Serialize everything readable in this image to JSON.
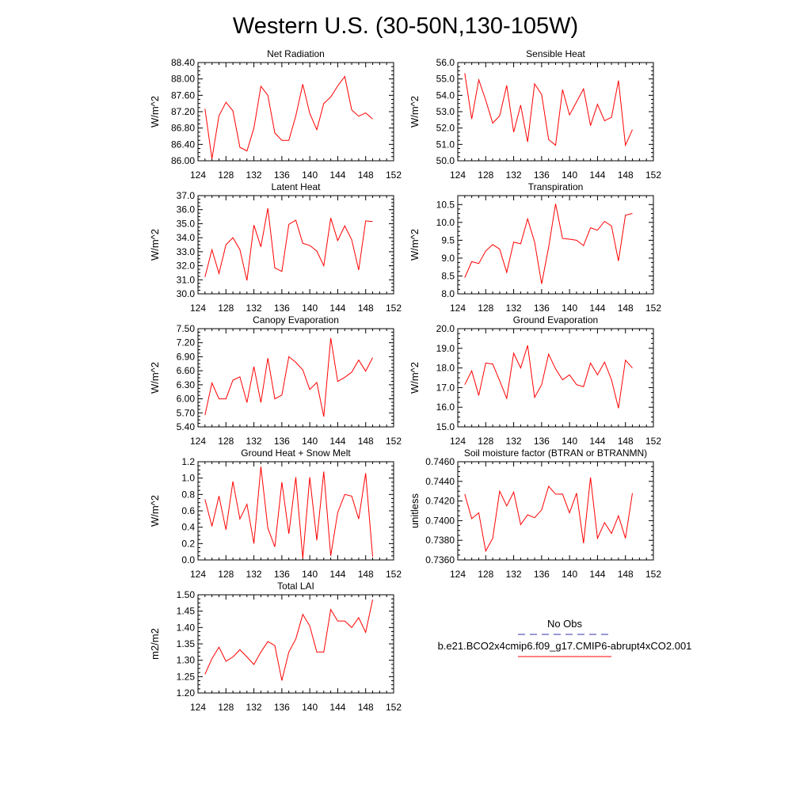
{
  "figure_title": "Western U.S. (30-50N,130-105W)",
  "legend": {
    "items": [
      {
        "label": "No Obs",
        "color": "#3333aa",
        "dash": true
      },
      {
        "label": "b.e21.BCO2x4cmip6.f09_g17.CMIP6-abrupt4xCO2.001",
        "color": "#ff0000",
        "dash": false
      }
    ]
  },
  "chart_data": [
    {
      "type": "line",
      "title": "Net Radiation",
      "ylabel": "W/m^2",
      "xlim": [
        124,
        152
      ],
      "ylim": [
        86.0,
        88.4
      ],
      "x_ticks": [
        "124",
        "128",
        "132",
        "136",
        "140",
        "144",
        "148",
        "152"
      ],
      "y_ticks": [
        "86.00",
        "86.40",
        "86.80",
        "87.20",
        "87.60",
        "88.00",
        "88.40"
      ],
      "series": [
        {
          "color": "#ff0000",
          "x": [
            125,
            126,
            127,
            128,
            129,
            130,
            131,
            132,
            133,
            134,
            135,
            136,
            137,
            138,
            139,
            140,
            141,
            142,
            143,
            144,
            145,
            146,
            147,
            148,
            149
          ],
          "values": [
            87.27,
            86.05,
            87.1,
            87.43,
            87.22,
            86.33,
            86.24,
            86.8,
            87.82,
            87.6,
            86.68,
            86.5,
            86.5,
            87.1,
            87.87,
            87.16,
            86.76,
            87.4,
            87.56,
            87.83,
            88.06,
            87.24,
            87.09,
            87.17,
            87.02
          ]
        }
      ]
    },
    {
      "type": "line",
      "title": "Sensible Heat",
      "ylabel": "W/m^2",
      "xlim": [
        124,
        152
      ],
      "ylim": [
        50.0,
        56.0
      ],
      "x_ticks": [
        "124",
        "128",
        "132",
        "136",
        "140",
        "144",
        "148",
        "152"
      ],
      "y_ticks": [
        "50.0",
        "51.0",
        "52.0",
        "53.0",
        "54.0",
        "55.0",
        "56.0"
      ],
      "series": [
        {
          "color": "#ff0000",
          "x": [
            125,
            126,
            127,
            128,
            129,
            130,
            131,
            132,
            133,
            134,
            135,
            136,
            137,
            138,
            139,
            140,
            141,
            142,
            143,
            144,
            145,
            146,
            147,
            148,
            149
          ],
          "values": [
            55.35,
            52.55,
            54.95,
            53.7,
            52.3,
            52.75,
            54.6,
            51.75,
            53.4,
            51.15,
            54.7,
            54.05,
            51.3,
            50.95,
            54.35,
            52.8,
            53.6,
            54.4,
            52.15,
            53.45,
            52.45,
            52.65,
            54.9,
            50.95,
            51.9
          ]
        }
      ]
    },
    {
      "type": "line",
      "title": "Latent Heat",
      "ylabel": "W/m^2",
      "xlim": [
        124,
        152
      ],
      "ylim": [
        30.0,
        37.0
      ],
      "x_ticks": [
        "124",
        "128",
        "132",
        "136",
        "140",
        "144",
        "148",
        "152"
      ],
      "y_ticks": [
        "30.0",
        "31.0",
        "32.0",
        "33.0",
        "34.0",
        "35.0",
        "36.0",
        "37.0"
      ],
      "series": [
        {
          "color": "#ff0000",
          "x": [
            125,
            126,
            127,
            128,
            129,
            130,
            131,
            132,
            133,
            134,
            135,
            136,
            137,
            138,
            139,
            140,
            141,
            142,
            143,
            144,
            145,
            146,
            147,
            148,
            149
          ],
          "values": [
            31.2,
            33.15,
            31.45,
            33.5,
            34.0,
            33.15,
            30.95,
            34.9,
            33.35,
            36.1,
            31.85,
            31.6,
            34.95,
            35.25,
            33.6,
            33.45,
            33.05,
            32.0,
            35.4,
            33.8,
            34.85,
            33.85,
            31.7,
            35.2,
            35.15
          ]
        }
      ]
    },
    {
      "type": "line",
      "title": "Transpiration",
      "ylabel": "W/m^2",
      "xlim": [
        124,
        152
      ],
      "ylim": [
        8.0,
        10.75
      ],
      "x_ticks": [
        "124",
        "128",
        "132",
        "136",
        "140",
        "144",
        "148",
        "152"
      ],
      "y_ticks": [
        "8.0",
        "8.5",
        "9.0",
        "9.5",
        "10.0",
        "10.5"
      ],
      "series": [
        {
          "color": "#ff0000",
          "x": [
            125,
            126,
            127,
            128,
            129,
            130,
            131,
            132,
            133,
            134,
            135,
            136,
            137,
            138,
            139,
            140,
            141,
            142,
            143,
            144,
            145,
            146,
            147,
            148,
            149
          ],
          "values": [
            8.45,
            8.9,
            8.85,
            9.2,
            9.38,
            9.25,
            8.6,
            9.45,
            9.4,
            10.1,
            9.45,
            8.28,
            9.3,
            10.52,
            9.55,
            9.53,
            9.5,
            9.35,
            9.85,
            9.78,
            10.03,
            9.9,
            8.92,
            10.2,
            10.25
          ]
        }
      ]
    },
    {
      "type": "line",
      "title": "Canopy Evaporation",
      "ylabel": "W/m^2",
      "xlim": [
        124,
        152
      ],
      "ylim": [
        5.4,
        7.5
      ],
      "x_ticks": [
        "124",
        "128",
        "132",
        "136",
        "140",
        "144",
        "148",
        "152"
      ],
      "y_ticks": [
        "5.40",
        "5.70",
        "6.00",
        "6.30",
        "6.60",
        "6.90",
        "7.20",
        "7.50"
      ],
      "series": [
        {
          "color": "#ff0000",
          "x": [
            125,
            126,
            127,
            128,
            129,
            130,
            131,
            132,
            133,
            134,
            135,
            136,
            137,
            138,
            139,
            140,
            141,
            142,
            143,
            144,
            145,
            146,
            147,
            148,
            149
          ],
          "values": [
            5.65,
            6.34,
            6.0,
            6.0,
            6.4,
            6.47,
            5.92,
            6.69,
            5.92,
            6.87,
            6.0,
            6.08,
            6.9,
            6.78,
            6.62,
            6.2,
            6.35,
            5.62,
            7.3,
            6.37,
            6.46,
            6.57,
            6.83,
            6.59,
            6.88
          ]
        }
      ]
    },
    {
      "type": "line",
      "title": "Ground Evaporation",
      "ylabel": "W/m^2",
      "xlim": [
        124,
        152
      ],
      "ylim": [
        15.0,
        20.0
      ],
      "x_ticks": [
        "124",
        "128",
        "132",
        "136",
        "140",
        "144",
        "148",
        "152"
      ],
      "y_ticks": [
        "15.0",
        "16.0",
        "17.0",
        "18.0",
        "19.0",
        "20.0"
      ],
      "series": [
        {
          "color": "#ff0000",
          "x": [
            125,
            126,
            127,
            128,
            129,
            130,
            131,
            132,
            133,
            134,
            135,
            136,
            137,
            138,
            139,
            140,
            141,
            142,
            143,
            144,
            145,
            146,
            147,
            148,
            149
          ],
          "values": [
            17.15,
            17.85,
            16.6,
            18.25,
            18.2,
            17.35,
            16.45,
            18.75,
            18.0,
            19.15,
            16.5,
            17.15,
            18.7,
            17.95,
            17.4,
            17.65,
            17.15,
            17.05,
            18.25,
            17.65,
            18.3,
            17.4,
            15.95,
            18.4,
            18.0
          ]
        }
      ]
    },
    {
      "type": "line",
      "title": "Ground Heat + Snow Melt",
      "ylabel": "W/m^2",
      "xlim": [
        124,
        152
      ],
      "ylim": [
        0.0,
        1.2
      ],
      "x_ticks": [
        "124",
        "128",
        "132",
        "136",
        "140",
        "144",
        "148",
        "152"
      ],
      "y_ticks": [
        "0.0",
        "0.2",
        "0.4",
        "0.6",
        "0.8",
        "1.0",
        "1.2"
      ],
      "series": [
        {
          "color": "#ff0000",
          "x": [
            125,
            126,
            127,
            128,
            129,
            130,
            131,
            132,
            133,
            134,
            135,
            136,
            137,
            138,
            139,
            140,
            141,
            142,
            143,
            144,
            145,
            146,
            147,
            148,
            149
          ],
          "values": [
            0.74,
            0.41,
            0.78,
            0.37,
            0.96,
            0.5,
            0.68,
            0.2,
            1.14,
            0.39,
            0.16,
            0.95,
            0.32,
            1.01,
            0.02,
            1.01,
            0.24,
            1.08,
            0.05,
            0.58,
            0.8,
            0.78,
            0.5,
            1.06,
            0.04
          ]
        }
      ]
    },
    {
      "type": "line",
      "title": "Soil moisture factor (BTRAN or BTRANMN)",
      "ylabel": "unitless",
      "xlim": [
        124,
        152
      ],
      "ylim": [
        0.736,
        0.746
      ],
      "x_ticks": [
        "124",
        "128",
        "132",
        "136",
        "140",
        "144",
        "148",
        "152"
      ],
      "y_ticks": [
        "0.7360",
        "0.7380",
        "0.7400",
        "0.7420",
        "0.7440",
        "0.7460"
      ],
      "series": [
        {
          "color": "#ff0000",
          "x": [
            125,
            126,
            127,
            128,
            129,
            130,
            131,
            132,
            133,
            134,
            135,
            136,
            137,
            138,
            139,
            140,
            141,
            142,
            143,
            144,
            145,
            146,
            147,
            148,
            149
          ],
          "values": [
            0.7427,
            0.7402,
            0.7408,
            0.7369,
            0.7382,
            0.743,
            0.7415,
            0.7429,
            0.7396,
            0.7406,
            0.7403,
            0.7411,
            0.7435,
            0.7427,
            0.7427,
            0.7408,
            0.7428,
            0.7377,
            0.7444,
            0.7382,
            0.7398,
            0.7387,
            0.7405,
            0.7382,
            0.7428
          ]
        }
      ]
    },
    {
      "type": "line",
      "title": "Total LAI",
      "ylabel": "m2/m2",
      "xlim": [
        124,
        152
      ],
      "ylim": [
        1.2,
        1.5
      ],
      "x_ticks": [
        "124",
        "128",
        "132",
        "136",
        "140",
        "144",
        "148",
        "152"
      ],
      "y_ticks": [
        "1.20",
        "1.25",
        "1.30",
        "1.35",
        "1.40",
        "1.45",
        "1.50"
      ],
      "series": [
        {
          "color": "#ff0000",
          "x": [
            125,
            126,
            127,
            128,
            129,
            130,
            131,
            132,
            133,
            134,
            135,
            136,
            137,
            138,
            139,
            140,
            141,
            142,
            143,
            144,
            145,
            146,
            147,
            148,
            149
          ],
          "values": [
            1.257,
            1.305,
            1.34,
            1.297,
            1.31,
            1.332,
            1.31,
            1.287,
            1.325,
            1.357,
            1.345,
            1.238,
            1.325,
            1.365,
            1.44,
            1.405,
            1.325,
            1.325,
            1.455,
            1.42,
            1.42,
            1.4,
            1.43,
            1.385,
            1.485
          ]
        }
      ]
    }
  ]
}
